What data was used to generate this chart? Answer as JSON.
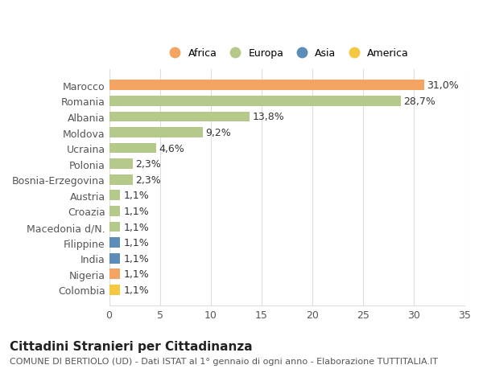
{
  "categories": [
    "Marocco",
    "Romania",
    "Albania",
    "Moldova",
    "Ucraina",
    "Polonia",
    "Bosnia-Erzegovina",
    "Austria",
    "Croazia",
    "Macedonia d/N.",
    "Filippine",
    "India",
    "Nigeria",
    "Colombia"
  ],
  "values": [
    31.0,
    28.7,
    13.8,
    9.2,
    4.6,
    2.3,
    2.3,
    1.1,
    1.1,
    1.1,
    1.1,
    1.1,
    1.1,
    1.1
  ],
  "continents": [
    "Africa",
    "Europa",
    "Europa",
    "Europa",
    "Europa",
    "Europa",
    "Europa",
    "Europa",
    "Europa",
    "Europa",
    "Asia",
    "Asia",
    "Africa",
    "America"
  ],
  "continent_colors": {
    "Africa": "#F4A460",
    "Europa": "#B5C98A",
    "Asia": "#5B8DB8",
    "America": "#F5C842"
  },
  "legend_order": [
    "Africa",
    "Europa",
    "Asia",
    "America"
  ],
  "legend_colors": {
    "Africa": "#F4A460",
    "Europa": "#B5C98A",
    "Asia": "#5B8DB8",
    "America": "#F5C842"
  },
  "title": "Cittadini Stranieri per Cittadinanza",
  "subtitle": "COMUNE DI BERTIOLO (UD) - Dati ISTAT al 1° gennaio di ogni anno - Elaborazione TUTTITALIA.IT",
  "xlim": [
    0,
    35
  ],
  "xticks": [
    0,
    5,
    10,
    15,
    20,
    25,
    30,
    35
  ],
  "bar_height": 0.65,
  "background_color": "#ffffff",
  "grid_color": "#dddddd",
  "label_fontsize": 9,
  "tick_fontsize": 9,
  "title_fontsize": 11,
  "subtitle_fontsize": 8
}
